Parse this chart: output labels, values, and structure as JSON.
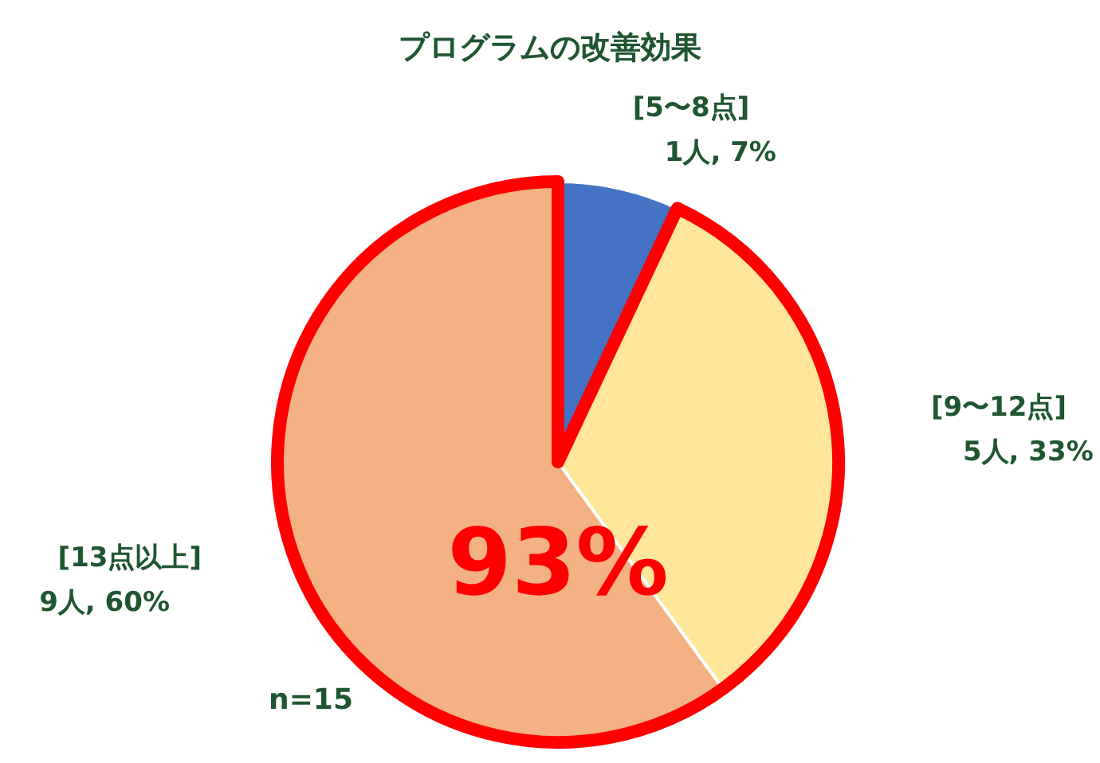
{
  "chart_data": {
    "type": "pie",
    "title": "プログラムの改善効果",
    "categories": [
      "[5〜8点]",
      "[9〜12点]",
      "[13点以上]"
    ],
    "values": [
      7,
      33,
      60
    ],
    "colors": [
      "#4472c4",
      "#ffe699",
      "#f4b183"
    ],
    "value_labels": [
      "1人, 7%",
      "5人, 33%",
      "9人, 60%"
    ],
    "annotations": [
      "93%",
      "n=15"
    ]
  }
}
